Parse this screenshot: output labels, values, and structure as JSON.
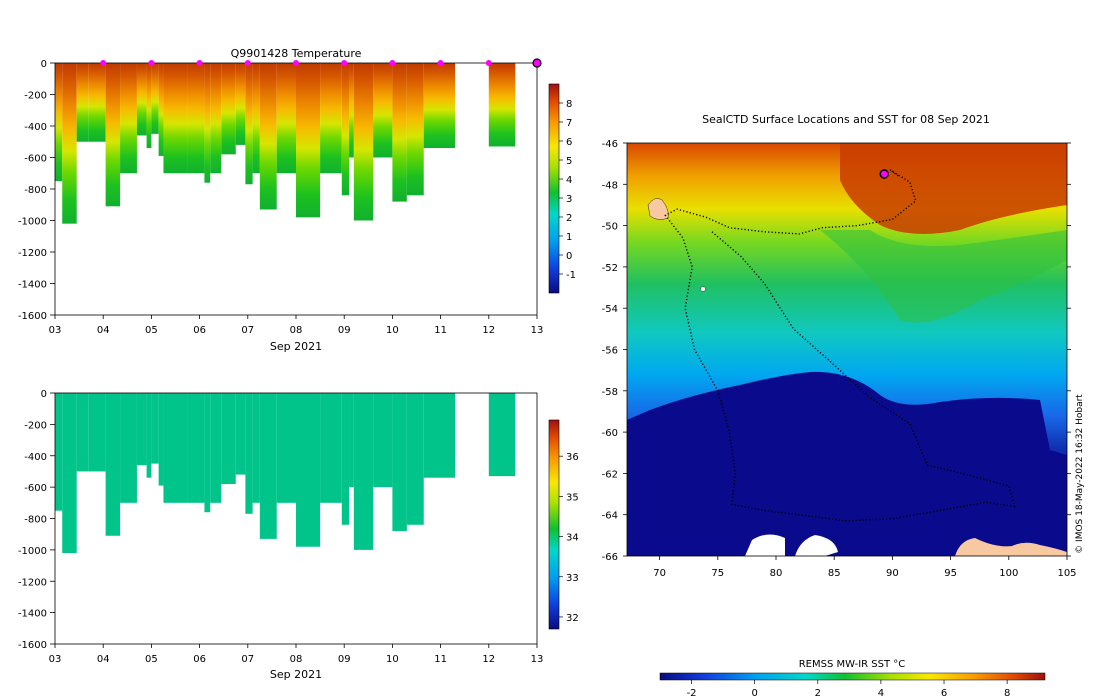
{
  "chart_data": [
    {
      "id": "temperature-profile",
      "type": "heatmap",
      "title": "Q9901428  Temperature",
      "xlabel": "Sep 2021",
      "x_ticks": [
        "03",
        "04",
        "05",
        "06",
        "07",
        "08",
        "09",
        "10",
        "11",
        "12",
        "13"
      ],
      "xlim": [
        3,
        13
      ],
      "y_ticks": [
        0,
        -200,
        -400,
        -600,
        -800,
        -1000,
        -1200,
        -1400,
        -1600
      ],
      "ylim": [
        -1600,
        0
      ],
      "colorbar": {
        "ticks": [
          8,
          7,
          6,
          5,
          4,
          3,
          2,
          1,
          0,
          -1
        ],
        "range": [
          -2,
          9
        ]
      },
      "surfacing_markers": [
        4,
        5,
        6,
        7,
        8,
        9,
        10,
        11,
        12
      ],
      "current_marker": 13,
      "profiles": [
        {
          "x0": 3.0,
          "x1": 3.15,
          "max_depth": -750
        },
        {
          "x0": 3.15,
          "x1": 3.45,
          "max_depth": -1020
        },
        {
          "x0": 3.45,
          "x1": 3.7,
          "max_depth": -500
        },
        {
          "x0": 3.7,
          "x1": 4.05,
          "max_depth": -500
        },
        {
          "x0": 4.05,
          "x1": 4.35,
          "max_depth": -910
        },
        {
          "x0": 4.35,
          "x1": 4.7,
          "max_depth": -700
        },
        {
          "x0": 4.7,
          "x1": 4.9,
          "max_depth": -460
        },
        {
          "x0": 4.9,
          "x1": 5.0,
          "max_depth": -540
        },
        {
          "x0": 5.0,
          "x1": 5.15,
          "max_depth": -450
        },
        {
          "x0": 5.15,
          "x1": 5.25,
          "max_depth": -590
        },
        {
          "x0": 5.25,
          "x1": 5.75,
          "max_depth": -700
        },
        {
          "x0": 5.75,
          "x1": 6.1,
          "max_depth": -700
        },
        {
          "x0": 6.1,
          "x1": 6.22,
          "max_depth": -760
        },
        {
          "x0": 6.22,
          "x1": 6.45,
          "max_depth": -700
        },
        {
          "x0": 6.45,
          "x1": 6.75,
          "max_depth": -580
        },
        {
          "x0": 6.75,
          "x1": 6.95,
          "max_depth": -520
        },
        {
          "x0": 6.95,
          "x1": 7.1,
          "max_depth": -770
        },
        {
          "x0": 7.1,
          "x1": 7.25,
          "max_depth": -700
        },
        {
          "x0": 7.25,
          "x1": 7.6,
          "max_depth": -930
        },
        {
          "x0": 7.6,
          "x1": 8.0,
          "max_depth": -700
        },
        {
          "x0": 8.0,
          "x1": 8.5,
          "max_depth": -980
        },
        {
          "x0": 8.5,
          "x1": 8.95,
          "max_depth": -700
        },
        {
          "x0": 8.95,
          "x1": 9.1,
          "max_depth": -840
        },
        {
          "x0": 9.1,
          "x1": 9.2,
          "max_depth": -600
        },
        {
          "x0": 9.2,
          "x1": 9.6,
          "max_depth": -1000
        },
        {
          "x0": 9.6,
          "x1": 10.0,
          "max_depth": -600
        },
        {
          "x0": 10.0,
          "x1": 10.3,
          "max_depth": -880
        },
        {
          "x0": 10.3,
          "x1": 10.65,
          "max_depth": -840
        },
        {
          "x0": 10.65,
          "x1": 11.3,
          "max_depth": -540
        },
        {
          "x0": 12.0,
          "x1": 12.55,
          "max_depth": -530
        }
      ]
    },
    {
      "id": "salinity-profile",
      "type": "heatmap",
      "title": "",
      "xlabel": "Sep 2021",
      "x_ticks": [
        "03",
        "04",
        "05",
        "06",
        "07",
        "08",
        "09",
        "10",
        "11",
        "12",
        "13"
      ],
      "xlim": [
        3,
        13
      ],
      "y_ticks": [
        0,
        -200,
        -400,
        -600,
        -800,
        -1000,
        -1200,
        -1400,
        -1600
      ],
      "ylim": [
        -1600,
        0
      ],
      "colorbar": {
        "ticks": [
          36,
          35,
          34,
          33,
          32
        ],
        "range": [
          31.7,
          36.9
        ]
      },
      "fill_value": 34.0,
      "fill_color": "#00c48a"
    },
    {
      "id": "sst-map",
      "type": "heatmap",
      "title": "SealCTD Surface Locations and SST for 08 Sep 2021",
      "xlabel": "",
      "ylabel": "",
      "x_ticks": [
        70,
        75,
        80,
        85,
        90,
        95,
        100,
        105
      ],
      "xlim": [
        67.2,
        105
      ],
      "y_ticks": [
        -46,
        -48,
        -50,
        -52,
        -54,
        -56,
        -58,
        -60,
        -62,
        -64,
        -66
      ],
      "ylim": [
        -66,
        -46
      ],
      "colorbar": {
        "label": "REMSS MW-IR SST °C",
        "ticks": [
          -2,
          0,
          2,
          4,
          6,
          8
        ],
        "range": [
          -3,
          9.2
        ]
      },
      "credit": "© IMOS 18-May-2022 16:32 Hobart",
      "current_location": {
        "lon": 89.3,
        "lat": -47.5
      },
      "track": [
        {
          "lon": 90.5,
          "lat": -47.6
        },
        {
          "lon": 89.8,
          "lat": -47.3
        },
        {
          "lon": 91.5,
          "lat": -47.9
        },
        {
          "lon": 92.0,
          "lat": -48.8
        },
        {
          "lon": 90.0,
          "lat": -49.7
        },
        {
          "lon": 87.0,
          "lat": -50.0
        },
        {
          "lon": 84.0,
          "lat": -50.1
        },
        {
          "lon": 82.0,
          "lat": -50.4
        },
        {
          "lon": 79.0,
          "lat": -50.3
        },
        {
          "lon": 76.0,
          "lat": -50.1
        },
        {
          "lon": 74.0,
          "lat": -49.6
        },
        {
          "lon": 71.5,
          "lat": -49.2
        },
        {
          "lon": 70.5,
          "lat": -49.5
        },
        {
          "lon": 72.0,
          "lat": -50.6
        },
        {
          "lon": 72.8,
          "lat": -52.0
        },
        {
          "lon": 72.2,
          "lat": -54.0
        },
        {
          "lon": 73.0,
          "lat": -56.0
        },
        {
          "lon": 75.0,
          "lat": -58.0
        },
        {
          "lon": 76.0,
          "lat": -60.0
        },
        {
          "lon": 76.5,
          "lat": -62.0
        },
        {
          "lon": 76.2,
          "lat": -63.5
        },
        {
          "lon": 79.0,
          "lat": -63.8
        },
        {
          "lon": 82.0,
          "lat": -64.0
        },
        {
          "lon": 86.0,
          "lat": -64.3
        },
        {
          "lon": 90.0,
          "lat": -64.2
        },
        {
          "lon": 94.0,
          "lat": -63.8
        },
        {
          "lon": 98.0,
          "lat": -63.4
        },
        {
          "lon": 100.5,
          "lat": -63.6
        },
        {
          "lon": 100.0,
          "lat": -62.6
        },
        {
          "lon": 96.0,
          "lat": -62.0
        },
        {
          "lon": 93.0,
          "lat": -61.6
        },
        {
          "lon": 91.5,
          "lat": -59.6
        },
        {
          "lon": 88.0,
          "lat": -58.3
        },
        {
          "lon": 84.5,
          "lat": -56.5
        },
        {
          "lon": 81.5,
          "lat": -55.0
        },
        {
          "lon": 79.0,
          "lat": -52.8
        },
        {
          "lon": 77.0,
          "lat": -51.5
        },
        {
          "lon": 74.5,
          "lat": -50.3
        }
      ]
    }
  ]
}
